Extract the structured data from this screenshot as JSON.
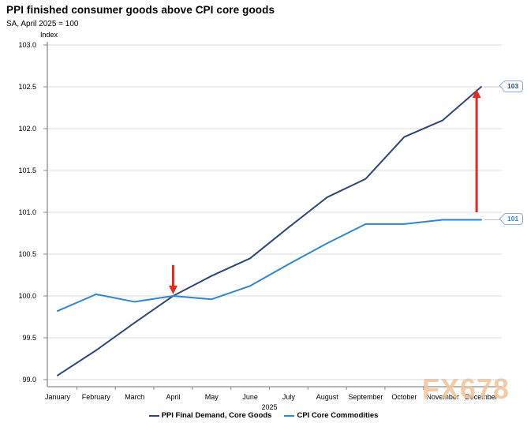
{
  "header": {
    "title": "PPI finished consumer goods above CPI core goods",
    "subtitle": "SA, April 2025 = 100"
  },
  "chart_data": {
    "type": "line",
    "title": "PPI finished consumer goods above CPI core goods",
    "subtitle": "SA, April 2025 = 100",
    "ylabel": "Index",
    "x_group_label": "2025",
    "x_categories": [
      "January",
      "February",
      "March",
      "April",
      "May",
      "June",
      "July",
      "August",
      "September",
      "October",
      "November",
      "December"
    ],
    "ylim": [
      99.0,
      103.0
    ],
    "y_step": 0.5,
    "y_decimals": 1,
    "grid": true,
    "legend_position": "bottom",
    "series": [
      {
        "name": "PPI Final Demand, Core Goods",
        "color": "#2e4678",
        "values": [
          99.05,
          99.35,
          99.68,
          100.0,
          100.24,
          100.45,
          100.82,
          101.18,
          101.4,
          101.9,
          102.1,
          102.5
        ],
        "end_label": "103"
      },
      {
        "name": "CPI Core Commodities",
        "color": "#2e86d4",
        "values": [
          99.82,
          100.02,
          99.93,
          100.0,
          99.96,
          100.12,
          100.38,
          100.63,
          100.86,
          100.86,
          100.91,
          100.91
        ],
        "end_label": "101"
      }
    ],
    "annotations": [
      {
        "id": "april-rebase-arrow",
        "direction": "down",
        "month_index": 3,
        "value_from": 100.37,
        "value_to": 100.02
      },
      {
        "id": "december-gap-arrow",
        "direction": "up",
        "month_index": 10.88,
        "value_from": 101.0,
        "value_to": 102.47
      }
    ],
    "annotation_color": "#e8291c"
  },
  "watermark": {
    "text": "FX678",
    "color": "#f2c49a"
  }
}
